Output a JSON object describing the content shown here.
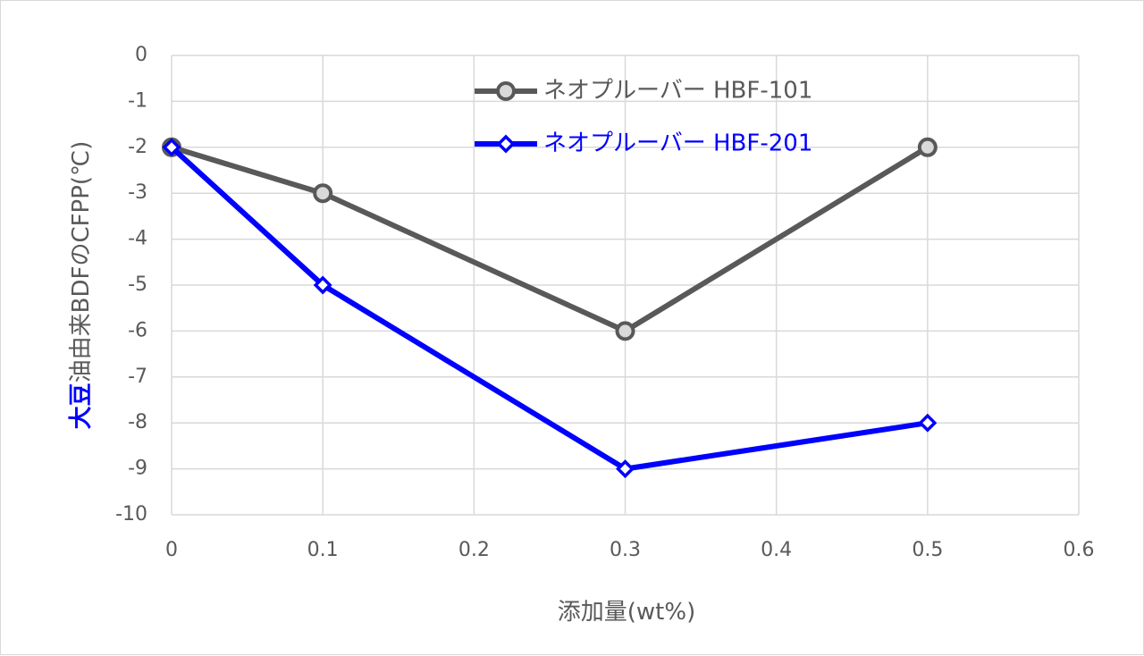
{
  "chart_data": {
    "type": "line",
    "title": "",
    "xlabel": "添加量(wt%)",
    "ylabel": {
      "highlight": "大豆",
      "rest": "油由来BDFのCFPP(℃)",
      "highlight_color": "#0000ff",
      "rest_color": "#595959"
    },
    "xlim": [
      0,
      0.6
    ],
    "ylim": [
      -10,
      0
    ],
    "x_ticks": [
      "0",
      "0.1",
      "0.2",
      "0.3",
      "0.4",
      "0.5",
      "0.6"
    ],
    "y_ticks": [
      "0",
      "-1",
      "-2",
      "-3",
      "-4",
      "-5",
      "-6",
      "-7",
      "-8",
      "-9",
      "-10"
    ],
    "grid": true,
    "legend_position": "top-center",
    "series": [
      {
        "name": "ネオプルーバー HBF-101",
        "color": "#595959",
        "marker": "circle",
        "marker_fill": "#d9d9d9",
        "label_color": "#595959",
        "points": [
          {
            "x": 0,
            "y": -2
          },
          {
            "x": 0.1,
            "y": -3
          },
          {
            "x": 0.3,
            "y": -6
          },
          {
            "x": 0.5,
            "y": -2
          }
        ]
      },
      {
        "name": "ネオプルーバー HBF-201",
        "color": "#0000ff",
        "marker": "diamond",
        "marker_fill": "#ffffff",
        "label_color": "#0000ff",
        "points": [
          {
            "x": 0,
            "y": -2
          },
          {
            "x": 0.1,
            "y": -5
          },
          {
            "x": 0.3,
            "y": -9
          },
          {
            "x": 0.5,
            "y": -8
          }
        ]
      }
    ]
  }
}
